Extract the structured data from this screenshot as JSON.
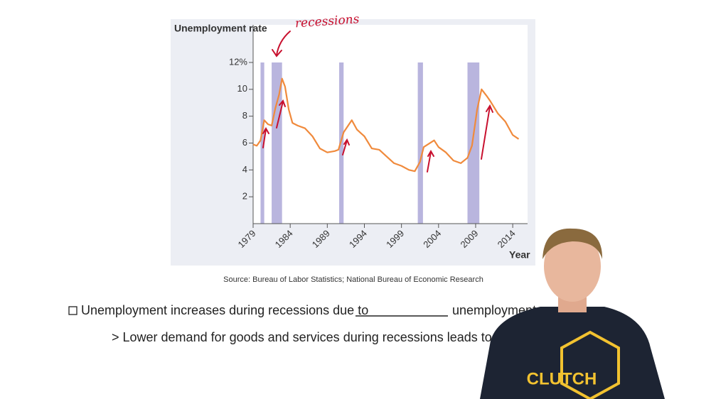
{
  "chart_data": {
    "type": "line",
    "y_label": "Unemployment rate",
    "x_label": "Year",
    "annotation": "recessions",
    "color": "#f08a3c",
    "recession_color": "#b9b5de",
    "xlim": [
      1979,
      2016
    ],
    "ylim": [
      0,
      14.8
    ],
    "xticks": [
      1979,
      1984,
      1989,
      1994,
      1999,
      2004,
      2009,
      2014
    ],
    "yticks": [
      2,
      4,
      6,
      8,
      10,
      {
        "value": 12,
        "label": "12%"
      }
    ],
    "recessions": [
      [
        1980.0,
        1980.5
      ],
      [
        1981.5,
        1982.9
      ],
      [
        1990.6,
        1991.2
      ],
      [
        2001.2,
        2001.9
      ],
      [
        2007.9,
        2009.5
      ]
    ],
    "x": [
      1979,
      1979.5,
      1980.0,
      1980.5,
      1981.0,
      1981.5,
      1982.0,
      1982.5,
      1982.9,
      1983.3,
      1983.8,
      1984.3,
      1985,
      1986,
      1987,
      1988,
      1989,
      1990,
      1990.5,
      1991.2,
      1992.3,
      1993,
      1994,
      1995,
      1996,
      1997,
      1998,
      1999,
      2000,
      2000.8,
      2001.5,
      2002,
      2003.4,
      2004,
      2005,
      2006,
      2007,
      2007.9,
      2008.5,
      2009.2,
      2009.8,
      2010.5,
      2011,
      2012,
      2013,
      2014,
      2014.8
    ],
    "values": [
      5.9,
      5.8,
      6.2,
      7.7,
      7.4,
      7.3,
      8.6,
      9.6,
      10.8,
      10.2,
      8.5,
      7.5,
      7.3,
      7.1,
      6.5,
      5.6,
      5.3,
      5.4,
      5.5,
      6.8,
      7.7,
      7.0,
      6.5,
      5.6,
      5.5,
      5.0,
      4.5,
      4.3,
      4.0,
      3.9,
      4.6,
      5.7,
      6.2,
      5.7,
      5.3,
      4.7,
      4.5,
      4.9,
      5.8,
      8.5,
      10.0,
      9.5,
      9.1,
      8.2,
      7.6,
      6.6,
      6.3
    ]
  },
  "source": "Source: Bureau of Labor Statistics; National Bureau of Economic Research",
  "bullets": {
    "line1_start": "Unemployment increases during recessions due to",
    "line1_end": "unemployment",
    "line2": "> Lower demand for goods and services during recessions leads to increa"
  },
  "shirt_text": "CLUTCH"
}
